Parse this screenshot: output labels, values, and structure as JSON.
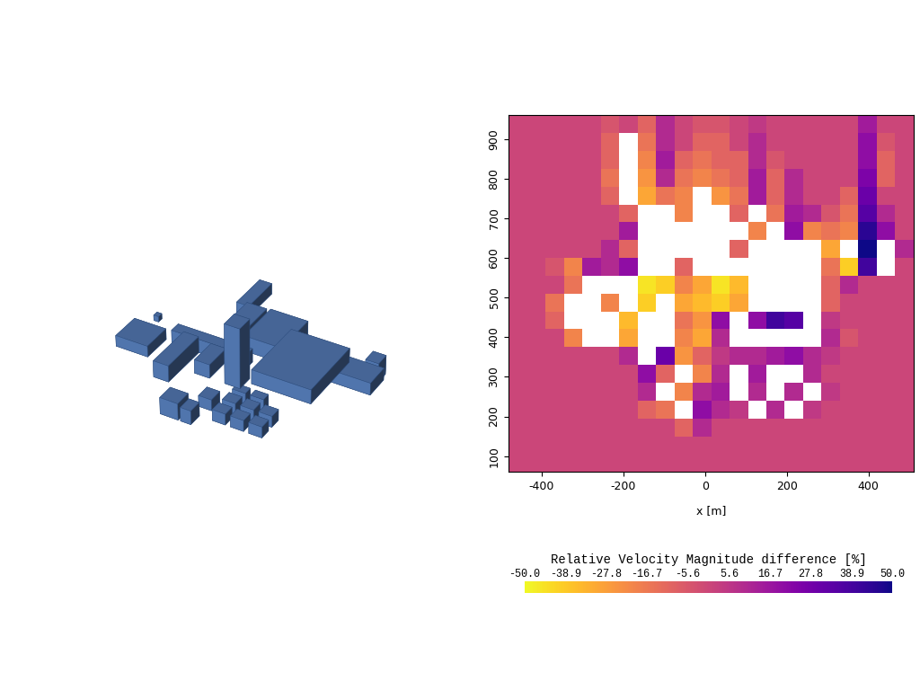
{
  "chart_data": {
    "type": "heatmap",
    "xlabel": "x [m]",
    "xlim": [
      -480,
      510
    ],
    "ylim": [
      60,
      960
    ],
    "xticks": [
      -400,
      -200,
      0,
      200,
      400
    ],
    "yticks": [
      100,
      200,
      300,
      400,
      500,
      600,
      700,
      800,
      900
    ],
    "cell_x": [
      -457.5,
      -412.5,
      -367.5,
      -322.5,
      -277.5,
      -232.5,
      -187.5,
      -142.5,
      -97.5,
      -52.5,
      -7.5,
      37.5,
      82.5,
      127.5,
      172.5,
      217.5,
      262.5,
      307.5,
      352.5,
      397.5,
      442.5,
      487.5
    ],
    "cell_y": [
      82.5,
      127.5,
      172.5,
      217.5,
      262.5,
      307.5,
      352.5,
      397.5,
      442.5,
      487.5,
      532.5,
      577.5,
      622.5,
      667.5,
      712.5,
      757.5,
      802.5,
      847.5,
      892.5,
      937.5
    ],
    "cells": [
      [
        0,
        0,
        0,
        0,
        0,
        0,
        0,
        0,
        0,
        0,
        0,
        0,
        0,
        0,
        0,
        0,
        0,
        0,
        0,
        0,
        0,
        0
      ],
      [
        0,
        0,
        0,
        0,
        0,
        0,
        0,
        0,
        0,
        0,
        0,
        0,
        0,
        0,
        0,
        0,
        0,
        0,
        0,
        0,
        0,
        0
      ],
      [
        0,
        0,
        0,
        0,
        0,
        0,
        0,
        0,
        0,
        -10,
        10,
        0,
        0,
        0,
        0,
        0,
        0,
        0,
        0,
        0,
        0,
        0
      ],
      [
        0,
        0,
        0,
        0,
        0,
        0,
        0,
        -10,
        -15,
        null,
        20,
        10,
        5,
        null,
        10,
        null,
        5,
        0,
        0,
        0,
        0,
        0
      ],
      [
        0,
        0,
        0,
        0,
        0,
        0,
        0,
        10,
        null,
        -20,
        10,
        15,
        null,
        10,
        null,
        10,
        null,
        5,
        0,
        0,
        0,
        0
      ],
      [
        0,
        0,
        0,
        0,
        0,
        0,
        0,
        20,
        -10,
        null,
        -20,
        10,
        null,
        15,
        null,
        null,
        10,
        0,
        0,
        0,
        0,
        0
      ],
      [
        0,
        0,
        0,
        0,
        0,
        0,
        10,
        null,
        30,
        -25,
        -10,
        5,
        10,
        10,
        15,
        20,
        10,
        5,
        0,
        0,
        0,
        0
      ],
      [
        0,
        0,
        0,
        -20,
        null,
        null,
        -30,
        null,
        null,
        -20,
        -30,
        10,
        null,
        null,
        null,
        null,
        null,
        10,
        -5,
        0,
        0,
        0
      ],
      [
        0,
        0,
        -10,
        null,
        null,
        null,
        -35,
        null,
        null,
        -15,
        -25,
        20,
        null,
        20,
        40,
        35,
        null,
        5,
        0,
        0,
        0,
        0
      ],
      [
        0,
        0,
        -15,
        null,
        null,
        -20,
        null,
        -40,
        null,
        -30,
        -35,
        -40,
        -30,
        null,
        null,
        null,
        null,
        -10,
        0,
        0,
        0,
        0
      ],
      [
        0,
        0,
        0,
        -15,
        null,
        null,
        null,
        -45,
        -40,
        -20,
        -30,
        -45,
        -35,
        null,
        null,
        null,
        null,
        -10,
        10,
        0,
        0,
        0
      ],
      [
        0,
        0,
        -5,
        -20,
        15,
        10,
        20,
        null,
        null,
        -10,
        null,
        null,
        null,
        null,
        null,
        null,
        null,
        -15,
        -40,
        40,
        null,
        0
      ],
      [
        0,
        0,
        0,
        0,
        0,
        10,
        -10,
        null,
        null,
        null,
        null,
        null,
        -10,
        null,
        null,
        null,
        null,
        -30,
        null,
        50,
        null,
        10
      ],
      [
        0,
        0,
        0,
        0,
        0,
        0,
        15,
        null,
        null,
        null,
        null,
        null,
        null,
        -20,
        null,
        20,
        -20,
        -15,
        -20,
        45,
        20,
        0
      ],
      [
        0,
        0,
        0,
        0,
        0,
        0,
        -10,
        null,
        null,
        -20,
        null,
        null,
        -10,
        null,
        -15,
        15,
        10,
        -5,
        -15,
        35,
        10,
        0
      ],
      [
        0,
        0,
        0,
        0,
        0,
        -10,
        null,
        -30,
        -15,
        -20,
        null,
        -25,
        -15,
        15,
        -10,
        10,
        0,
        0,
        -10,
        30,
        0,
        0
      ],
      [
        0,
        0,
        0,
        0,
        0,
        -15,
        null,
        -25,
        10,
        -15,
        -20,
        -15,
        -10,
        15,
        -10,
        10,
        0,
        0,
        0,
        25,
        -10,
        0
      ],
      [
        0,
        0,
        0,
        0,
        0,
        -10,
        null,
        -20,
        15,
        -10,
        -15,
        -10,
        -10,
        10,
        -5,
        0,
        0,
        0,
        0,
        20,
        -10,
        0
      ],
      [
        0,
        0,
        0,
        0,
        0,
        -10,
        null,
        -15,
        10,
        0,
        -10,
        -10,
        0,
        10,
        0,
        0,
        0,
        0,
        0,
        20,
        -5,
        0
      ],
      [
        0,
        0,
        0,
        0,
        0,
        -5,
        0,
        -10,
        10,
        0,
        -5,
        -5,
        0,
        5,
        0,
        0,
        0,
        0,
        0,
        15,
        0,
        0
      ]
    ],
    "colorbar": {
      "label": "Relative Velocity Magnitude difference [%]",
      "range": [
        -50,
        50
      ],
      "ticks": [
        {
          "value": -50,
          "label": "-50.0"
        },
        -38.9,
        -27.8,
        -16.7,
        -5.6,
        5.6,
        16.7,
        27.8,
        38.9,
        {
          "value": 50,
          "label": "50.0"
        }
      ]
    }
  }
}
